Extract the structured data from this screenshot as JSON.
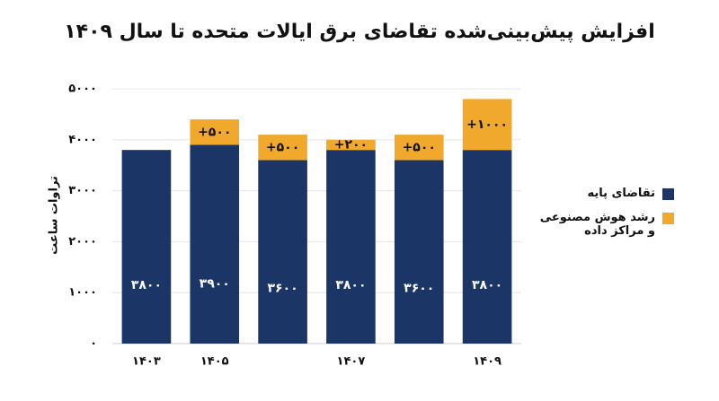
{
  "chart_data": {
    "type": "stacked-bar",
    "title": "افزایش پیش‌بینی‌شده تقاضای برق ایالات متحده تا سال ۱۴۰۹",
    "y_label": "تراوات ساعت",
    "categories": [
      "۱۴۰۳",
      "۱۴۰۵",
      null,
      "۱۴۰۷",
      null,
      "۱۴۰۹"
    ],
    "series": [
      {
        "name": "تقاضای پایه",
        "color": "#1b3566",
        "values": [
          3800,
          3900,
          3600,
          3800,
          3600,
          3800
        ],
        "value_labels": [
          "۳۸۰۰",
          "۳۹۰۰",
          "۳۶۰۰",
          "۳۸۰۰",
          "۳۶۰۰",
          "۳۸۰۰"
        ]
      },
      {
        "name": "رشد هوش مصنوعی و مراکز داده",
        "color": "#f0a92c",
        "values": [
          null,
          500,
          500,
          200,
          500,
          1000
        ],
        "value_labels": [
          null,
          "+۵۰۰",
          "+۵۰۰",
          "+۲۰۰",
          "+۵۰۰",
          "+۱۰۰۰"
        ]
      }
    ],
    "ylim": [
      0,
      5000
    ],
    "yticks": [
      {
        "value": 0,
        "label": "۰"
      },
      {
        "value": 1000,
        "label": "۱۰۰۰"
      },
      {
        "value": 2000,
        "label": "۲۰۰۰"
      },
      {
        "value": 3000,
        "label": "۳۰۰۰"
      },
      {
        "value": 4000,
        "label": "۴۰۰۰"
      },
      {
        "value": 5000,
        "label": "۵۰۰۰"
      }
    ],
    "grid": true
  }
}
